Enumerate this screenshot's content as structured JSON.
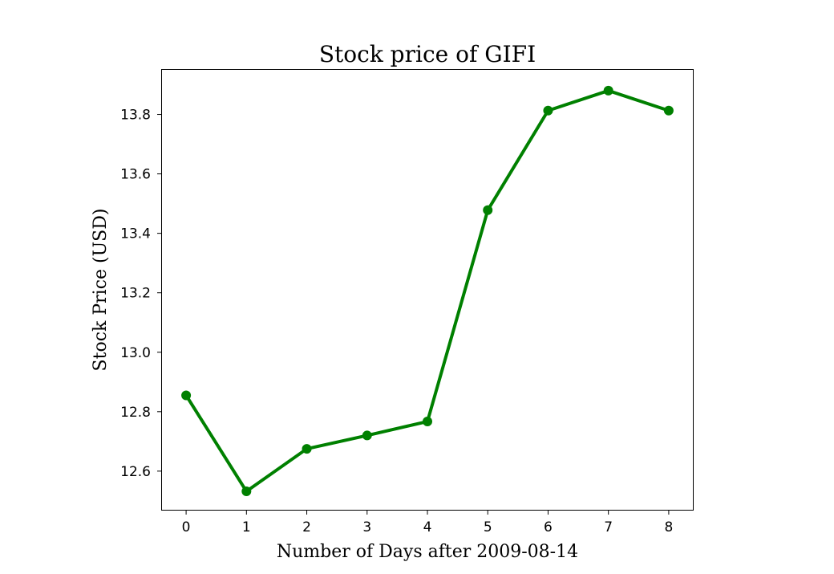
{
  "chart_data": {
    "type": "line",
    "title": "Stock price of GIFI",
    "xlabel": "Number of Days after 2009-08-14",
    "ylabel": "Stock Price (USD)",
    "x": [
      0,
      1,
      2,
      3,
      4,
      5,
      6,
      7,
      8
    ],
    "series": [
      {
        "values": [
          12.855,
          12.532,
          12.675,
          12.72,
          12.767,
          13.478,
          13.813,
          13.88,
          13.813
        ],
        "color": "#008000",
        "marker": "circle"
      }
    ],
    "xticks": [
      "0",
      "1",
      "2",
      "3",
      "4",
      "5",
      "6",
      "7",
      "8"
    ],
    "yticks": [
      "12.6",
      "12.8",
      "13.0",
      "13.2",
      "13.4",
      "13.6",
      "13.8"
    ],
    "xlim": [
      -0.4,
      8.4
    ],
    "ylim": [
      12.47,
      13.95
    ],
    "grid": false,
    "legend": "none"
  }
}
